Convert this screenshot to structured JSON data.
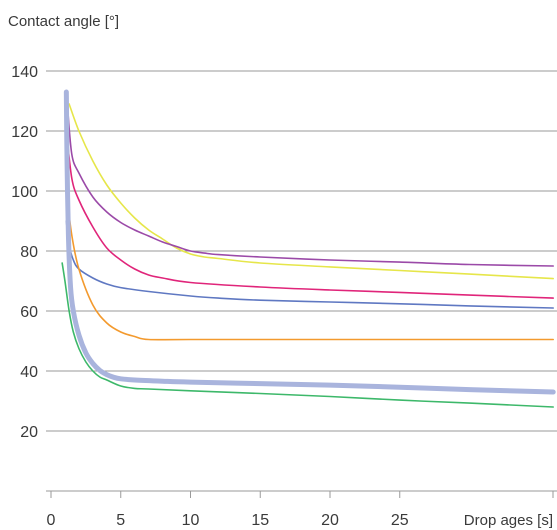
{
  "chart_data": {
    "type": "line",
    "title": "",
    "ylabel": "Contact angle [°]",
    "xlabel": "Drop ages [s]",
    "xlim": [
      0,
      36
    ],
    "ylim": [
      0,
      140
    ],
    "x_ticks": [
      0,
      5,
      10,
      15,
      20,
      25
    ],
    "y_ticks": [
      20,
      40,
      60,
      80,
      100,
      120,
      140
    ],
    "grid": "horizontal",
    "legend": "none",
    "series": [
      {
        "color": "#e6e64a",
        "width": 1.6,
        "points": [
          [
            1.3,
            129
          ],
          [
            2,
            120
          ],
          [
            3,
            110
          ],
          [
            4,
            102
          ],
          [
            5,
            96
          ],
          [
            6,
            91
          ],
          [
            7,
            87
          ],
          [
            8,
            84
          ],
          [
            9,
            81
          ],
          [
            10,
            79
          ],
          [
            11,
            78
          ],
          [
            12,
            77.5
          ],
          [
            15,
            76
          ],
          [
            20,
            74.7
          ],
          [
            25,
            73.5
          ],
          [
            30,
            72.3
          ],
          [
            36,
            70.8
          ]
        ]
      },
      {
        "color": "#9b4aa8",
        "width": 1.6,
        "points": [
          [
            1.2,
            127
          ],
          [
            1.5,
            112
          ],
          [
            2,
            106
          ],
          [
            3,
            98
          ],
          [
            4,
            93
          ],
          [
            5,
            89.5
          ],
          [
            6,
            87
          ],
          [
            7,
            85
          ],
          [
            8,
            83
          ],
          [
            9,
            81.5
          ],
          [
            10,
            80
          ],
          [
            11,
            79.3
          ],
          [
            12,
            78.8
          ],
          [
            15,
            78
          ],
          [
            20,
            77
          ],
          [
            25,
            76.3
          ],
          [
            30,
            75.5
          ],
          [
            36,
            75
          ]
        ]
      },
      {
        "color": "#e0257a",
        "width": 1.6,
        "points": [
          [
            1.15,
            118
          ],
          [
            1.5,
            104
          ],
          [
            2,
            97
          ],
          [
            3,
            88
          ],
          [
            4,
            81
          ],
          [
            5,
            77
          ],
          [
            6,
            74
          ],
          [
            7,
            72
          ],
          [
            8,
            71
          ],
          [
            10,
            69.5
          ],
          [
            15,
            68
          ],
          [
            20,
            67
          ],
          [
            25,
            66.2
          ],
          [
            30,
            65.3
          ],
          [
            36,
            64.3
          ]
        ]
      },
      {
        "color": "#5f78c2",
        "width": 1.6,
        "points": [
          [
            1.1,
            90
          ],
          [
            1.3,
            82
          ],
          [
            1.6,
            77
          ],
          [
            2,
            74
          ],
          [
            3,
            71
          ],
          [
            4,
            69
          ],
          [
            5,
            67.8
          ],
          [
            7,
            66.5
          ],
          [
            10,
            65
          ],
          [
            12,
            64.3
          ],
          [
            15,
            63.6
          ],
          [
            20,
            63
          ],
          [
            25,
            62.4
          ],
          [
            30,
            61.7
          ],
          [
            36,
            61
          ]
        ]
      },
      {
        "color": "#f39a2e",
        "width": 1.6,
        "points": [
          [
            1.15,
            98
          ],
          [
            1.5,
            85
          ],
          [
            2,
            74
          ],
          [
            3,
            62
          ],
          [
            4,
            56
          ],
          [
            5,
            53
          ],
          [
            6,
            51.5
          ],
          [
            7,
            50.5
          ],
          [
            10,
            50.5
          ],
          [
            20,
            50.5
          ],
          [
            30,
            50.5
          ],
          [
            36,
            50.5
          ]
        ]
      },
      {
        "color": "#3db86a",
        "width": 1.6,
        "points": [
          [
            0.8,
            76
          ],
          [
            1,
            70
          ],
          [
            1.3,
            60
          ],
          [
            1.6,
            53
          ],
          [
            2,
            47.5
          ],
          [
            2.5,
            43
          ],
          [
            3,
            40
          ],
          [
            3.5,
            38
          ],
          [
            4,
            37
          ],
          [
            5,
            35
          ],
          [
            6,
            34.2
          ],
          [
            7,
            34
          ],
          [
            10,
            33.4
          ],
          [
            15,
            32.5
          ],
          [
            20,
            31.5
          ],
          [
            25,
            30.3
          ],
          [
            30,
            29.3
          ],
          [
            36,
            28
          ]
        ]
      },
      {
        "color": "#a9b4dd",
        "width": 5,
        "points": [
          [
            1.1,
            133
          ],
          [
            1.15,
            110
          ],
          [
            1.25,
            85
          ],
          [
            1.4,
            68
          ],
          [
            1.6,
            60
          ],
          [
            2,
            52
          ],
          [
            2.5,
            46
          ],
          [
            3,
            42.5
          ],
          [
            3.5,
            40.2
          ],
          [
            4,
            38.8
          ],
          [
            4.5,
            37.9
          ],
          [
            5,
            37.4
          ],
          [
            6,
            37
          ],
          [
            8,
            36.6
          ],
          [
            10,
            36.3
          ],
          [
            15,
            35.8
          ],
          [
            20,
            35.3
          ],
          [
            25,
            34.6
          ],
          [
            30,
            33.8
          ],
          [
            36,
            33
          ]
        ]
      }
    ]
  }
}
